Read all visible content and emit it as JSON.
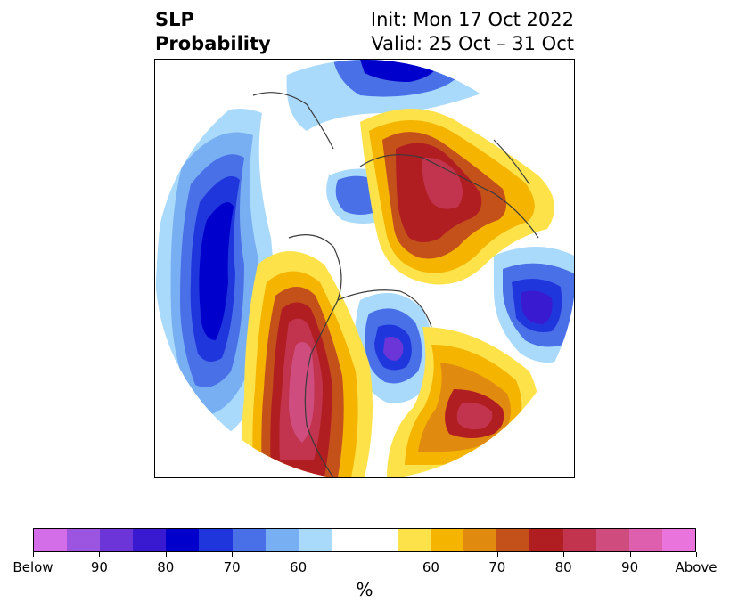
{
  "title": {
    "left_line1": "SLP",
    "left_line2": "Probability",
    "right_line1": "Init: Mon 17 Oct 2022",
    "right_line2": "Valid: 25 Oct – 31 Oct"
  },
  "colorbar": {
    "colors": [
      "#d36ee8",
      "#9c55e0",
      "#6b35d8",
      "#3a1ad0",
      "#0000cc",
      "#2036dd",
      "#4a70e8",
      "#78aff2",
      "#a9d9fb",
      "#ffffff",
      "#ffffff",
      "#fde24a",
      "#f4b400",
      "#e08a10",
      "#c4501a",
      "#b01e22",
      "#c2334d",
      "#cf4c7e",
      "#de5fae",
      "#e874dc"
    ],
    "labels": [
      "Below",
      "90",
      "80",
      "70",
      "60",
      "60",
      "70",
      "80",
      "90",
      "Above"
    ],
    "unit": "%"
  },
  "map": {
    "projection": "north-polar-stereographic",
    "land_colors": {
      "below_strong": "#0000cc",
      "below_medium": "#2036dd",
      "below_light": "#4a70e8",
      "below_pale": "#78aff2",
      "below_faint": "#a9d9fb",
      "above_faint": "#fde24a",
      "above_light": "#f4b400",
      "above_medium": "#e08a10",
      "above_strong": "#c4501a",
      "above_deep": "#b01e22",
      "above_max": "#c2334d",
      "above_top": "#cf4c7e"
    }
  }
}
